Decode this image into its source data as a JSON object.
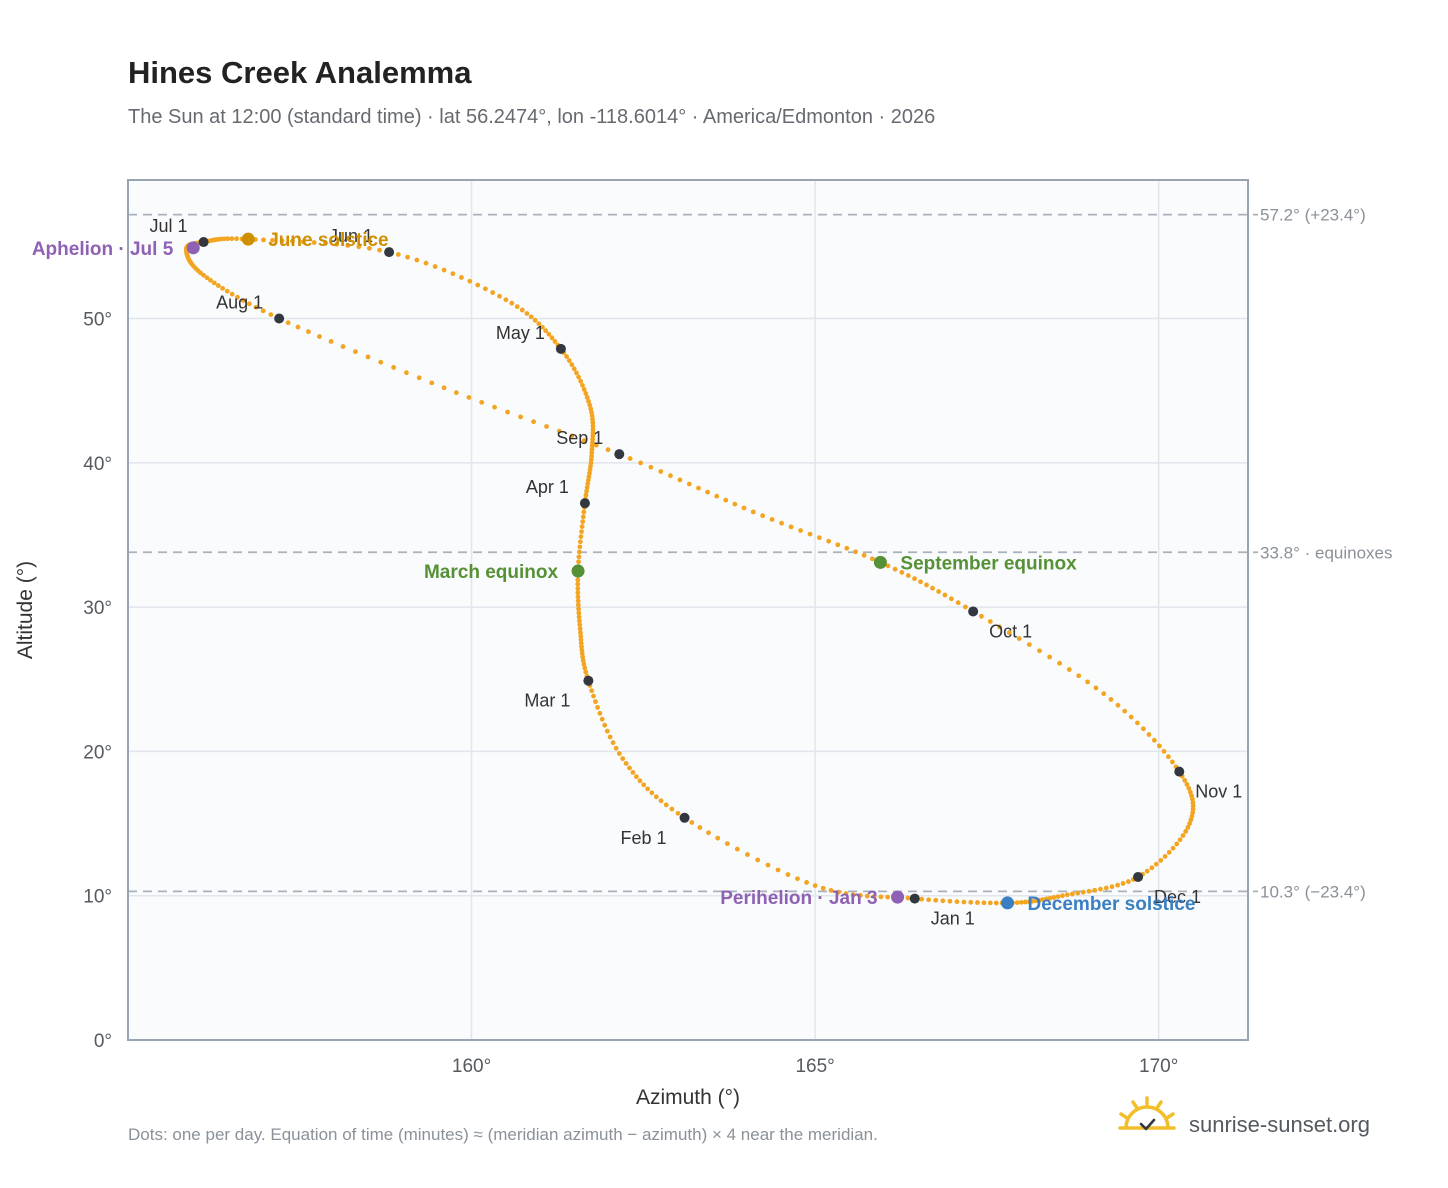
{
  "title": "Hines Creek Analemma",
  "subtitle": "The Sun at 12:00 (standard time) · lat 56.2474°, lon -118.6014° · America/Edmonton · 2026",
  "footnote": "Dots: one per day. Equation of time (minutes) ≈ (meridian azimuth − azimuth) × 4 near the meridian.",
  "brand": {
    "name": "sunrise-sunset.org",
    "icon": "sun-logo-icon"
  },
  "colors": {
    "curve": "#f3a521",
    "month_dot": "#333840",
    "aphelion": "#8e61b4",
    "perihelion": "#8e61b4",
    "june_solstice": "#cf8f00",
    "december_solstice": "#3a7fc1",
    "equinox": "#579135",
    "plot_bg": "#f9fbfd",
    "grid": "#e1e6ec",
    "frame": "#9aa4b0",
    "ref_line": "#a9b1ba"
  },
  "chart_data": {
    "type": "scatter",
    "title": "Hines Creek Analemma",
    "xlabel": "Azimuth (°)",
    "ylabel": "Altitude (°)",
    "xlim": [
      155.0,
      171.3
    ],
    "ylim": [
      0,
      59.6
    ],
    "grid": true,
    "x_ticks": [
      160,
      165,
      170
    ],
    "x_tick_labels": [
      "160°",
      "165°",
      "170°"
    ],
    "y_ticks": [
      0,
      10,
      20,
      30,
      40,
      50
    ],
    "y_tick_labels": [
      "0°",
      "10°",
      "20°",
      "30°",
      "40°",
      "50°"
    ],
    "reference_lines": [
      {
        "altitude": 57.2,
        "label": "57.2° (+23.4°)"
      },
      {
        "altitude": 33.8,
        "label": "33.8° · equinoxes"
      },
      {
        "altitude": 10.3,
        "label": "10.3° (−23.4°)"
      }
    ],
    "months": [
      {
        "label": "Jan 1",
        "az": 166.45,
        "alt": 9.8,
        "label_pos": "below"
      },
      {
        "label": "Feb 1",
        "az": 163.1,
        "alt": 15.4,
        "label_pos": "below-left"
      },
      {
        "label": "Mar 1",
        "az": 161.7,
        "alt": 24.9,
        "label_pos": "below-left"
      },
      {
        "label": "Apr 1",
        "az": 161.65,
        "alt": 37.2,
        "label_pos": "above-left"
      },
      {
        "label": "May 1",
        "az": 161.3,
        "alt": 47.9,
        "label_pos": "above-left"
      },
      {
        "label": "Jun 1",
        "az": 158.8,
        "alt": 54.6,
        "label_pos": "above-left"
      },
      {
        "label": "Jul 1",
        "az": 156.1,
        "alt": 55.3,
        "label_pos": "above-left"
      },
      {
        "label": "Aug 1",
        "az": 157.2,
        "alt": 50.0,
        "label_pos": "above-left"
      },
      {
        "label": "Sep 1",
        "az": 162.15,
        "alt": 40.6,
        "label_pos": "above-left"
      },
      {
        "label": "Oct 1",
        "az": 167.3,
        "alt": 29.7,
        "label_pos": "below-right"
      },
      {
        "label": "Nov 1",
        "az": 170.3,
        "alt": 18.6,
        "label_pos": "below-right"
      },
      {
        "label": "Dec 1",
        "az": 169.7,
        "alt": 11.3,
        "label_pos": "below-right"
      }
    ],
    "events": [
      {
        "label": "Aphelion · Jul 5",
        "az": 155.95,
        "alt": 54.9,
        "color_key": "aphelion",
        "label_pos": "left"
      },
      {
        "label": "June solstice",
        "az": 156.75,
        "alt": 55.5,
        "color_key": "june_solstice",
        "label_pos": "right"
      },
      {
        "label": "March equinox",
        "az": 161.55,
        "alt": 32.5,
        "color_key": "equinox",
        "label_pos": "left"
      },
      {
        "label": "September equinox",
        "az": 165.95,
        "alt": 33.1,
        "color_key": "equinox",
        "label_pos": "right"
      },
      {
        "label": "Perihelion · Jan 3",
        "az": 166.2,
        "alt": 9.9,
        "color_key": "perihelion",
        "label_pos": "left"
      },
      {
        "label": "December solstice",
        "az": 167.8,
        "alt": 9.5,
        "color_key": "december_solstice",
        "label_pos": "right"
      }
    ],
    "curve_keypoints": [
      [
        167.8,
        9.5
      ],
      [
        166.45,
        9.8
      ],
      [
        165.0,
        10.7
      ],
      [
        163.1,
        15.4
      ],
      [
        162.2,
        19.5
      ],
      [
        161.7,
        24.9
      ],
      [
        161.58,
        28.5
      ],
      [
        161.55,
        32.5
      ],
      [
        161.65,
        37.2
      ],
      [
        161.75,
        40.7
      ],
      [
        161.72,
        44.0
      ],
      [
        161.3,
        47.9
      ],
      [
        160.5,
        51.3
      ],
      [
        158.8,
        54.6
      ],
      [
        156.75,
        55.5
      ],
      [
        156.1,
        55.3
      ],
      [
        155.85,
        54.8
      ],
      [
        156.1,
        53.0
      ],
      [
        157.2,
        50.0
      ],
      [
        159.6,
        45.2
      ],
      [
        162.15,
        40.6
      ],
      [
        164.1,
        36.6
      ],
      [
        165.95,
        33.1
      ],
      [
        167.3,
        29.7
      ],
      [
        169.2,
        24.0
      ],
      [
        170.3,
        18.6
      ],
      [
        170.45,
        15.0
      ],
      [
        169.7,
        11.3
      ],
      [
        168.6,
        10.0
      ],
      [
        167.8,
        9.5
      ]
    ]
  }
}
